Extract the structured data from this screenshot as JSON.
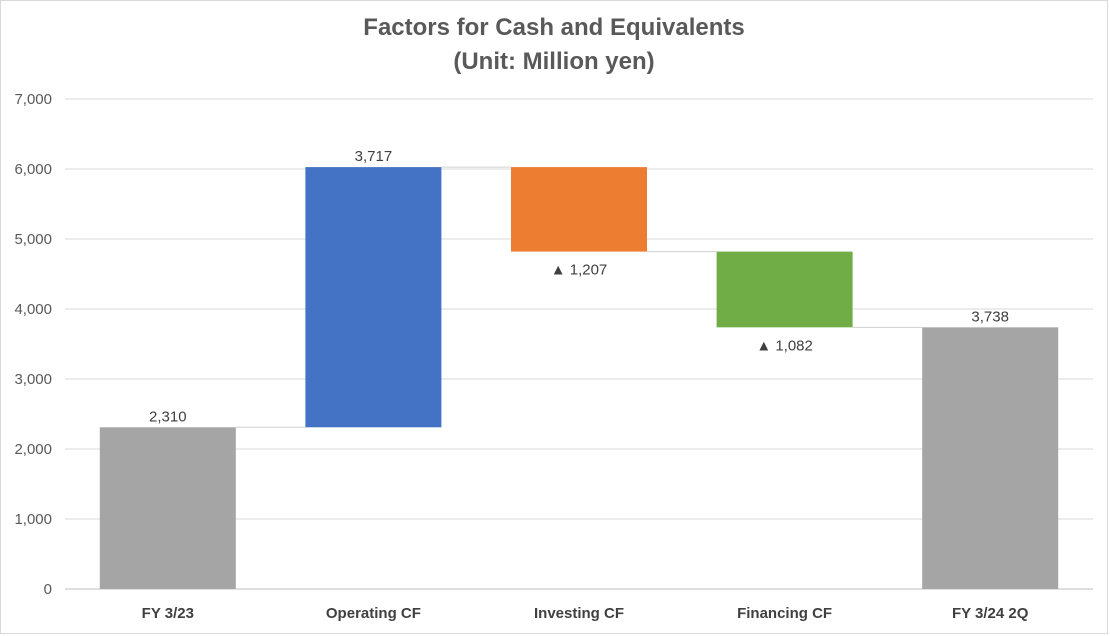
{
  "chart_data": {
    "type": "waterfall",
    "title": "Factors for Cash and Equivalents",
    "subtitle": "(Unit: Million yen)",
    "ylim": [
      0,
      7000
    ],
    "y_ticks": [
      "0",
      "1,000",
      "2,000",
      "3,000",
      "4,000",
      "5,000",
      "6,000",
      "7,000"
    ],
    "grid": true,
    "categories": [
      "FY 3/23",
      "Operating CF",
      "Investing CF",
      "Financing CF",
      "FY 3/24 2Q"
    ],
    "bars": [
      {
        "category": "FY 3/23",
        "kind": "total",
        "start": 0,
        "end": 2310,
        "value": 2310,
        "label": "2,310",
        "color": "#a5a5a5"
      },
      {
        "category": "Operating CF",
        "kind": "increase",
        "start": 2310,
        "end": 6027,
        "value": 3717,
        "label": "3,717",
        "color": "#4472c4"
      },
      {
        "category": "Investing CF",
        "kind": "decrease",
        "start": 6027,
        "end": 4820,
        "value": -1207,
        "label": "▲ 1,207",
        "color": "#ed7d31"
      },
      {
        "category": "Financing CF",
        "kind": "decrease",
        "start": 4820,
        "end": 3738,
        "value": -1082,
        "label": "▲ 1,082",
        "color": "#70ad47"
      },
      {
        "category": "FY 3/24 2Q",
        "kind": "total",
        "start": 0,
        "end": 3738,
        "value": 3738,
        "label": "3,738",
        "color": "#a5a5a5"
      }
    ]
  }
}
